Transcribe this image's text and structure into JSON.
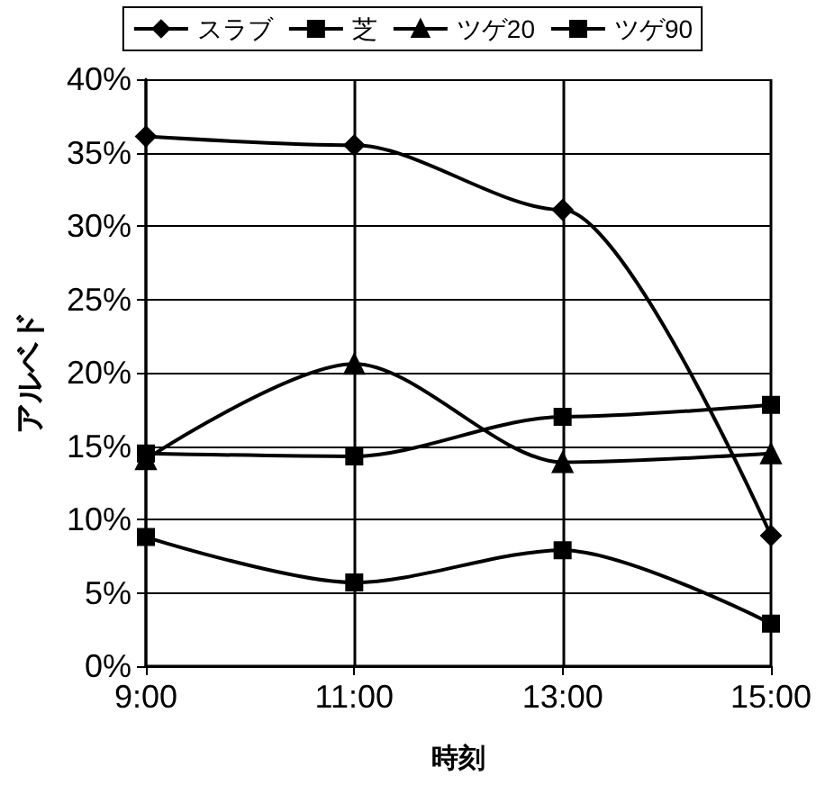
{
  "chart_data": {
    "type": "line",
    "xlabel": "時刻",
    "ylabel": "アルベド",
    "x": [
      9,
      11,
      13,
      15
    ],
    "xlim": [
      9,
      15
    ],
    "xticks": [
      {
        "value": 9,
        "label": "9:00"
      },
      {
        "value": 11,
        "label": "11:00"
      },
      {
        "value": 13,
        "label": "13:00"
      },
      {
        "value": 15,
        "label": "15:00"
      }
    ],
    "ylim": [
      0,
      40
    ],
    "yticks": [
      {
        "value": 0,
        "label": "0%"
      },
      {
        "value": 5,
        "label": "5%"
      },
      {
        "value": 10,
        "label": "10%"
      },
      {
        "value": 15,
        "label": "15%"
      },
      {
        "value": 20,
        "label": "20%"
      },
      {
        "value": 25,
        "label": "25%"
      },
      {
        "value": 30,
        "label": "30%"
      },
      {
        "value": 35,
        "label": "35%"
      },
      {
        "value": 40,
        "label": "40%"
      }
    ],
    "grid": true,
    "legend": "top",
    "line_style": "solid",
    "series": [
      {
        "name": "スラブ",
        "color": "#000000",
        "marker": "diamond",
        "values": [
          36.1,
          35.5,
          31.1,
          8.9
        ]
      },
      {
        "name": "芝",
        "color": "#000000",
        "marker": "square",
        "values": [
          14.5,
          14.3,
          17.0,
          17.8
        ]
      },
      {
        "name": "ツゲ20",
        "color": "#000000",
        "marker": "triangle",
        "values": [
          14.1,
          20.6,
          13.9,
          14.5
        ]
      },
      {
        "name": "ツゲ90",
        "color": "#000000",
        "marker": "square",
        "values": [
          8.8,
          5.7,
          7.9,
          2.9
        ]
      }
    ]
  }
}
